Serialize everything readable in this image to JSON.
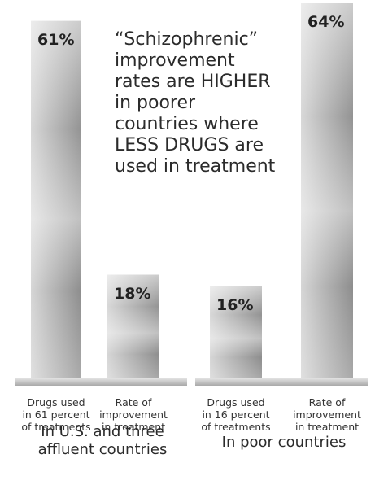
{
  "headline": "“Schizophrenic” improvement rates are HIGHER in poorer countries where LESS DRUGS are used in treatment",
  "groups": [
    {
      "label": "In U.S. and three\naffluent countries"
    },
    {
      "label": "In poor countries"
    }
  ],
  "chart_data": {
    "type": "bar",
    "title": "“Schizophrenic” improvement rates are HIGHER in poorer countries where LESS DRUGS are used in treatment",
    "xlabel": "",
    "ylabel": "",
    "ylim": [
      0,
      100
    ],
    "grid": false,
    "legend": "none",
    "unit": "%",
    "bars": [
      {
        "group": "In U.S. and three affluent countries",
        "category": "Drugs used\nin 61 percent\nof treatments",
        "value": 61,
        "label": "61%"
      },
      {
        "group": "In U.S. and three affluent countries",
        "category": "Rate of\nimprovement\nin treatment",
        "value": 18,
        "label": "18%"
      },
      {
        "group": "In poor countries",
        "category": "Drugs used\nin 16 percent\nof treatments",
        "value": 16,
        "label": "16%"
      },
      {
        "group": "In poor countries",
        "category": "Rate of\nimprovement\nin treatment",
        "value": 64,
        "label": "64%"
      }
    ],
    "colors": {
      "bar_light": "#f4f4f4",
      "bar_mid": "#bdbdbd",
      "bar_dark": "#8c8c8c",
      "base": "#c9c9c9"
    }
  }
}
